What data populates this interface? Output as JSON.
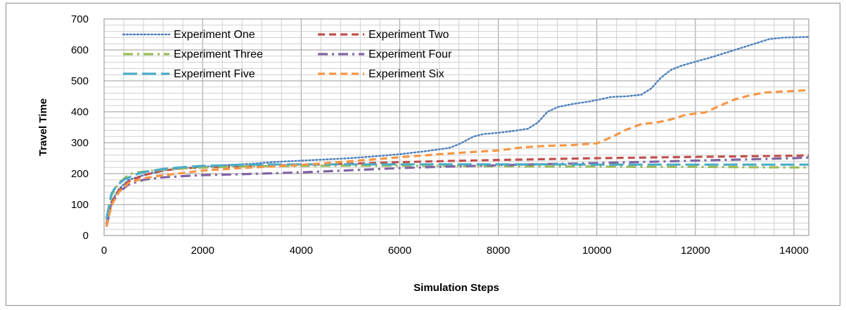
{
  "chart_data": {
    "type": "line",
    "xlabel": "Simulation Steps",
    "ylabel": "Travel Time",
    "xlim": [
      0,
      14300
    ],
    "ylim": [
      0,
      700
    ],
    "xticks": [
      "0",
      "2000",
      "4000",
      "6000",
      "8000",
      "10000",
      "12000",
      "14000"
    ],
    "yticks": [
      "0",
      "100",
      "200",
      "300",
      "400",
      "500",
      "600",
      "700"
    ],
    "grid": true,
    "legend_position": "top-left",
    "series": [
      {
        "name": "Experiment One",
        "color": "#4f81bd",
        "style": "dotted",
        "x": [
          50,
          150,
          300,
          500,
          800,
          1200,
          1600,
          2000,
          2500,
          3000,
          3500,
          4000,
          4500,
          5000,
          5500,
          6000,
          6500,
          7000,
          7200,
          7500,
          7700,
          8000,
          8300,
          8600,
          8800,
          9000,
          9200,
          9500,
          9800,
          10000,
          10300,
          10600,
          10900,
          11100,
          11300,
          11500,
          11700,
          12000,
          12300,
          12600,
          12900,
          13200,
          13500,
          13800,
          14100,
          14300
        ],
        "y": [
          40,
          110,
          150,
          180,
          195,
          210,
          218,
          222,
          228,
          232,
          238,
          242,
          246,
          250,
          256,
          263,
          272,
          283,
          295,
          320,
          328,
          332,
          338,
          345,
          365,
          400,
          415,
          425,
          432,
          438,
          448,
          450,
          455,
          475,
          510,
          535,
          548,
          562,
          575,
          590,
          605,
          620,
          635,
          640,
          641,
          642
        ]
      },
      {
        "name": "Experiment Two",
        "color": "#c0504d",
        "style": "dashed",
        "x": [
          50,
          150,
          300,
          500,
          800,
          1200,
          1600,
          2000,
          3000,
          4000,
          5000,
          6000,
          7000,
          8000,
          9000,
          10000,
          11000,
          12000,
          13000,
          14000,
          14300
        ],
        "y": [
          35,
          105,
          145,
          175,
          195,
          210,
          217,
          220,
          225,
          228,
          232,
          237,
          241,
          244,
          247,
          250,
          252,
          254,
          256,
          258,
          259
        ]
      },
      {
        "name": "Experiment Three",
        "color": "#9bbb59",
        "style": "dashdot",
        "x": [
          50,
          150,
          300,
          450,
          600,
          800,
          1200,
          1600,
          2000,
          3000,
          4000,
          5000,
          6000,
          7000,
          8000,
          9000,
          10000,
          11000,
          12000,
          13000,
          14000,
          14300
        ],
        "y": [
          50,
          130,
          170,
          190,
          203,
          206,
          213,
          217,
          220,
          224,
          225,
          226,
          226,
          225,
          224,
          223,
          223,
          222,
          222,
          221,
          220,
          220
        ]
      },
      {
        "name": "Experiment Four",
        "color": "#8064a2",
        "style": "dashdot",
        "x": [
          50,
          150,
          300,
          500,
          800,
          1200,
          1600,
          2000,
          3000,
          4000,
          5000,
          6000,
          7000,
          8000,
          9000,
          10000,
          11000,
          12000,
          13000,
          14000,
          14300
        ],
        "y": [
          30,
          100,
          140,
          165,
          180,
          188,
          192,
          195,
          199,
          204,
          211,
          218,
          223,
          227,
          231,
          234,
          238,
          242,
          246,
          250,
          252
        ]
      },
      {
        "name": "Experiment Five",
        "color": "#4bacc6",
        "style": "longdash",
        "x": [
          50,
          150,
          250,
          400,
          600,
          800,
          1200,
          1600,
          2000,
          3000,
          4000,
          5000,
          6000,
          7000,
          8000,
          9000,
          10000,
          11000,
          12000,
          13000,
          14000,
          14300
        ],
        "y": [
          55,
          135,
          160,
          180,
          195,
          205,
          215,
          221,
          225,
          229,
          230,
          230,
          230,
          230,
          230,
          230,
          229,
          229,
          229,
          229,
          229,
          229
        ]
      },
      {
        "name": "Experiment Six",
        "color": "#f79646",
        "style": "dashed",
        "x": [
          50,
          150,
          300,
          500,
          800,
          1200,
          1600,
          2000,
          3000,
          4000,
          5000,
          6000,
          7000,
          8000,
          8500,
          9000,
          9500,
          10000,
          10300,
          10600,
          10900,
          11200,
          11500,
          11800,
          12200,
          12500,
          12800,
          13100,
          13400,
          13700,
          14000,
          14300
        ],
        "y": [
          28,
          98,
          140,
          170,
          185,
          195,
          202,
          210,
          220,
          228,
          240,
          253,
          265,
          275,
          285,
          290,
          292,
          298,
          318,
          342,
          360,
          365,
          375,
          390,
          398,
          420,
          440,
          453,
          462,
          465,
          467,
          470
        ]
      }
    ]
  }
}
